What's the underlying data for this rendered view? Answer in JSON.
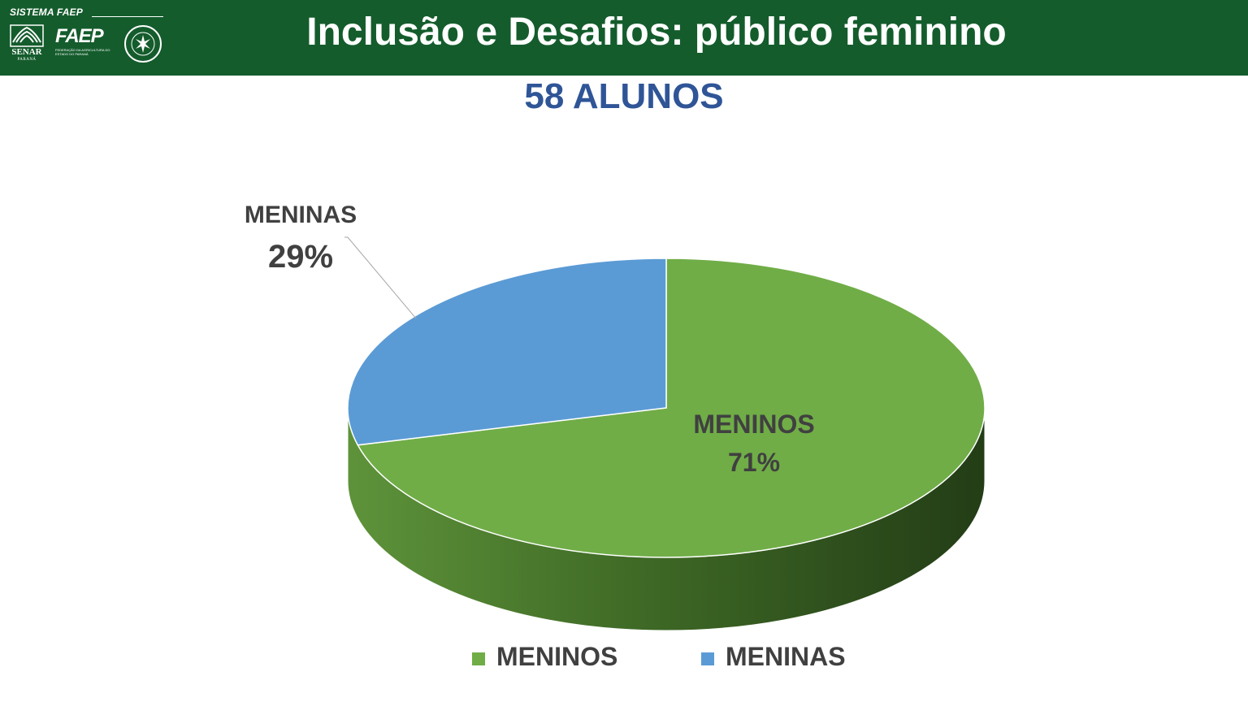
{
  "header": {
    "brand": "SISTEMA FAEP",
    "logos": {
      "senar": "SENAR",
      "senar_sub": "PARANÁ",
      "faep": "FAEP",
      "faep_sub": "FEDERAÇÃO DA AGRICULTURA DO ESTADO DO PARANÁ",
      "sindicato_icon": "sindicato-rural-seal-icon"
    },
    "background_color": "#145c2c"
  },
  "title": "Inclusão e Desafios: público feminino",
  "subtitle": "58 ALUNOS",
  "chart_data": {
    "type": "pie",
    "style": "3d",
    "categories": [
      "MENINOS",
      "MENINAS"
    ],
    "values": [
      71,
      29
    ],
    "unit": "%",
    "colors": [
      "#70ad47",
      "#5b9bd5"
    ],
    "data_labels": [
      {
        "name": "MENINOS",
        "value": "71%"
      },
      {
        "name": "MENINAS",
        "value": "29%"
      }
    ],
    "legend": {
      "position": "bottom",
      "entries": [
        "MENINOS",
        "MENINAS"
      ]
    }
  }
}
